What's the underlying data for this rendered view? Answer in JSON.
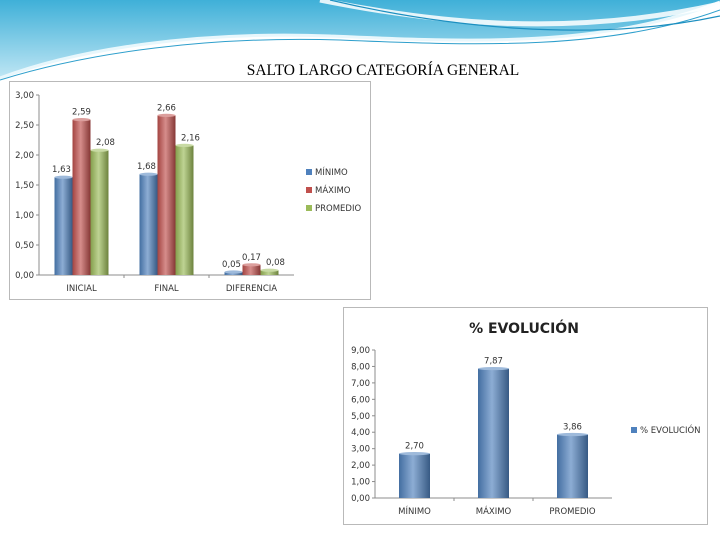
{
  "slide": {
    "title": "SALTO LARGO CATEGORÍA GENERAL"
  },
  "chart_data": [
    {
      "type": "bar",
      "title": "",
      "xlabel": "",
      "ylabel": "",
      "categories": [
        "INICIAL",
        "FINAL",
        "DIFERENCIA"
      ],
      "series": [
        {
          "name": "MÍNIMO",
          "color": "#4f81bd",
          "values": [
            1.63,
            1.68,
            0.05
          ],
          "labels": [
            "1,63",
            "1,68",
            "0,05"
          ]
        },
        {
          "name": "MÁXIMO",
          "color": "#c0504d",
          "values": [
            2.59,
            2.66,
            0.17
          ],
          "labels": [
            "2,59",
            "2,66",
            "0,17"
          ]
        },
        {
          "name": "PROMEDIO",
          "color": "#9bbb59",
          "values": [
            2.08,
            2.16,
            0.08
          ],
          "labels": [
            "2,08",
            "2,16",
            "0,08"
          ]
        }
      ],
      "ylim": [
        0,
        3
      ],
      "yticks": [
        "0,00",
        "0,50",
        "1,00",
        "1,50",
        "2,00",
        "2,50",
        "3,00"
      ],
      "grid": false,
      "legend": "right"
    },
    {
      "type": "bar",
      "title": "% EVOLUCIÓN",
      "xlabel": "",
      "ylabel": "",
      "categories": [
        "MÍNIMO",
        "MÁXIMO",
        "PROMEDIO"
      ],
      "series": [
        {
          "name": "% EVOLUCIÓN",
          "color": "#4f81bd",
          "values": [
            2.7,
            7.87,
            3.86
          ],
          "labels": [
            "2,70",
            "7,87",
            "3,86"
          ]
        }
      ],
      "ylim": [
        0,
        9
      ],
      "yticks": [
        "0,00",
        "1,00",
        "2,00",
        "3,00",
        "4,00",
        "5,00",
        "6,00",
        "7,00",
        "8,00",
        "9,00"
      ],
      "grid": false,
      "legend": "right"
    }
  ]
}
